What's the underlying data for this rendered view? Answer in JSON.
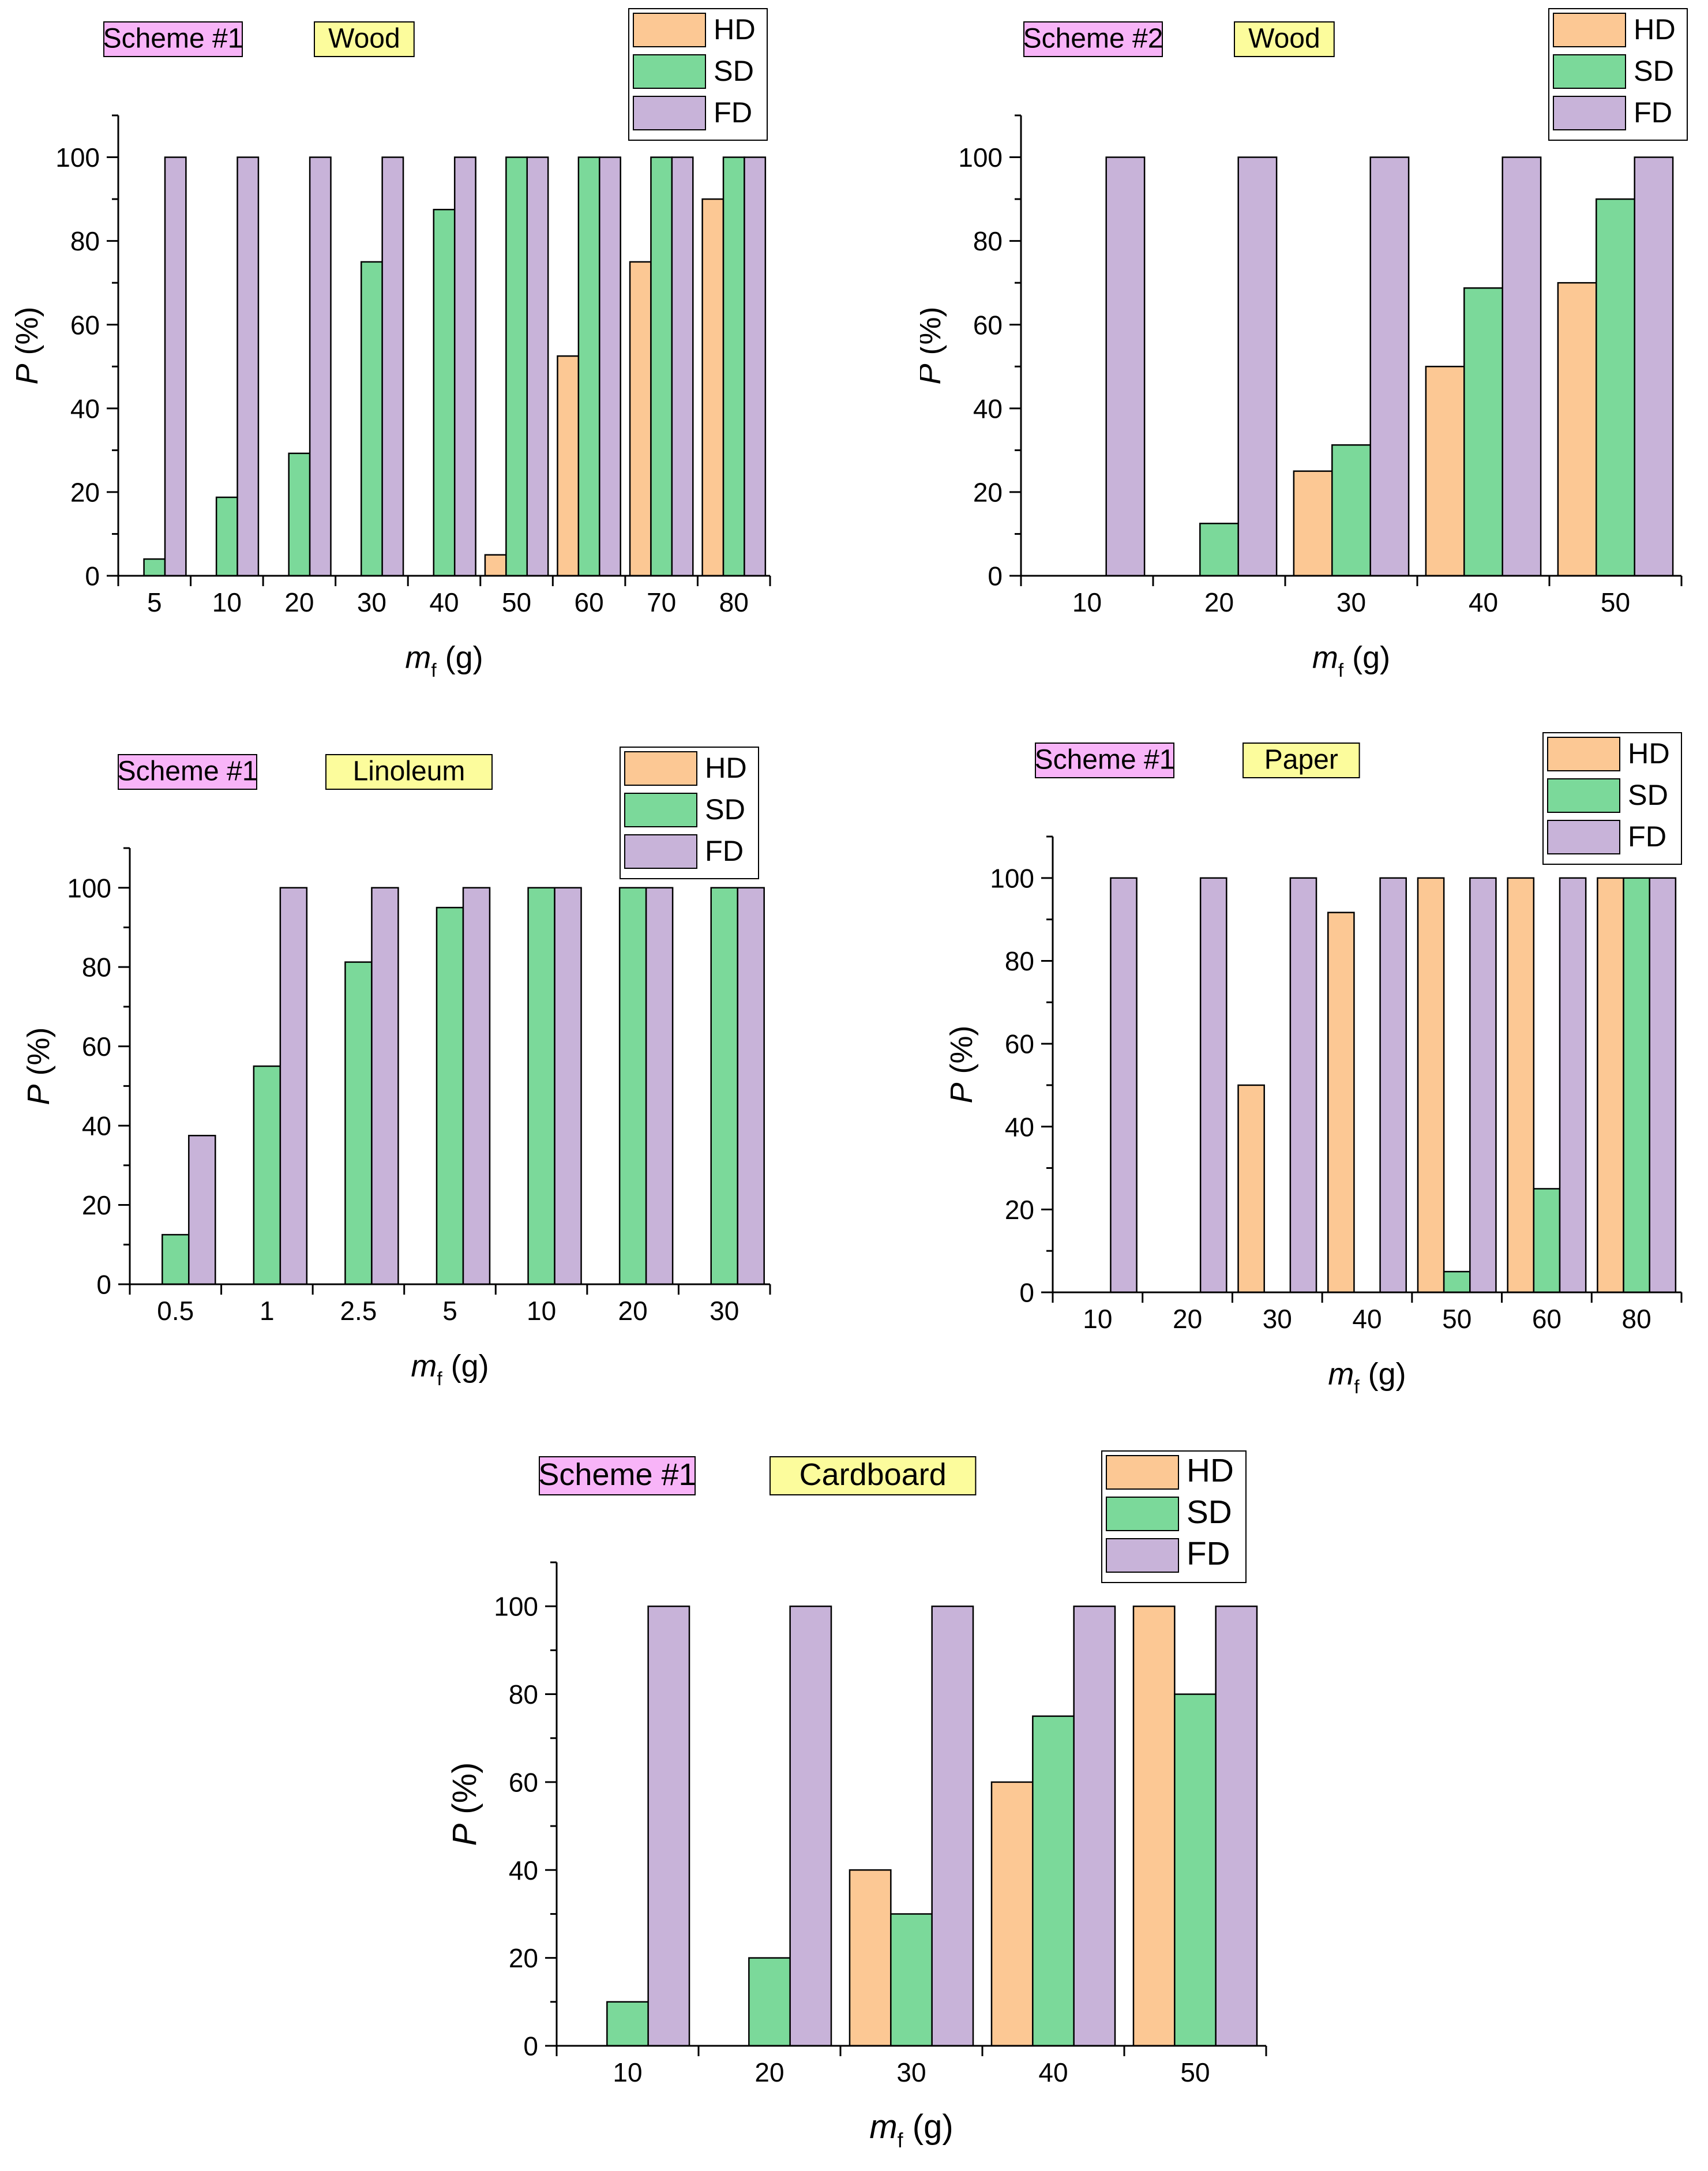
{
  "legend_labels": [
    "HD",
    "SD",
    "FD"
  ],
  "colors": {
    "HD": "#fcc894",
    "SD": "#7bd99a",
    "FD": "#c8b3d9",
    "scheme_tag": "#f8b4f8",
    "material_tag": "#fcfc9c"
  },
  "chart_data": [
    {
      "type": "bar",
      "scheme": "Scheme #1",
      "material": "Wood",
      "categories": [
        "5",
        "10",
        "20",
        "30",
        "40",
        "50",
        "60",
        "70",
        "80"
      ],
      "series": [
        {
          "name": "HD",
          "values": [
            0,
            0,
            0,
            0,
            0,
            5,
            52.5,
            75,
            90
          ]
        },
        {
          "name": "SD",
          "values": [
            4,
            18.75,
            29.25,
            75,
            87.5,
            100,
            100,
            100,
            100
          ]
        },
        {
          "name": "FD",
          "values": [
            100,
            100,
            100,
            100,
            100,
            100,
            100,
            100,
            100
          ]
        }
      ],
      "ylim": [
        0,
        110
      ],
      "yticks": [
        "0",
        "20",
        "40",
        "60",
        "80",
        "100"
      ],
      "xlabel_main": "m",
      "xlabel_sub": "f",
      "xlabel_unit": " (g)",
      "ylabel_main": "P",
      "ylabel_unit": " (%)",
      "legend_position": "top-right",
      "grid": false
    },
    {
      "type": "bar",
      "scheme": "Scheme #2",
      "material": "Wood",
      "categories": [
        "10",
        "20",
        "30",
        "40",
        "50"
      ],
      "series": [
        {
          "name": "HD",
          "values": [
            0,
            0,
            25,
            50,
            70
          ]
        },
        {
          "name": "SD",
          "values": [
            0,
            12.5,
            31.25,
            68.75,
            90
          ]
        },
        {
          "name": "FD",
          "values": [
            100,
            100,
            100,
            100,
            100
          ]
        }
      ],
      "ylim": [
        0,
        110
      ],
      "yticks": [
        "0",
        "20",
        "40",
        "60",
        "80",
        "100"
      ],
      "xlabel_main": "m",
      "xlabel_sub": "f",
      "xlabel_unit": " (g)",
      "ylabel_main": "P",
      "ylabel_unit": " (%)",
      "legend_position": "top-right",
      "grid": false
    },
    {
      "type": "bar",
      "scheme": "Scheme #1",
      "material": "Linoleum",
      "categories": [
        "0.5",
        "1",
        "2.5",
        "5",
        "10",
        "20",
        "30"
      ],
      "series": [
        {
          "name": "HD",
          "values": [
            0,
            0,
            0,
            0,
            0,
            0,
            0
          ]
        },
        {
          "name": "SD",
          "values": [
            12.5,
            55,
            81.25,
            95,
            100,
            100,
            100
          ]
        },
        {
          "name": "FD",
          "values": [
            37.5,
            100,
            100,
            100,
            100,
            100,
            100
          ]
        }
      ],
      "ylim": [
        0,
        110
      ],
      "yticks": [
        "0",
        "20",
        "40",
        "60",
        "80",
        "100"
      ],
      "xlabel_main": "m",
      "xlabel_sub": "f",
      "xlabel_unit": " (g)",
      "ylabel_main": "P",
      "ylabel_unit": " (%)",
      "legend_position": "top-right",
      "grid": false
    },
    {
      "type": "bar",
      "scheme": "Scheme #1",
      "material": "Paper",
      "categories": [
        "10",
        "20",
        "30",
        "40",
        "50",
        "60",
        "80"
      ],
      "series": [
        {
          "name": "HD",
          "values": [
            0,
            0,
            50,
            91.67,
            100,
            100,
            100
          ]
        },
        {
          "name": "SD",
          "values": [
            0,
            0,
            0,
            0,
            5,
            25,
            100
          ]
        },
        {
          "name": "FD",
          "values": [
            100,
            100,
            100,
            100,
            100,
            100,
            100
          ]
        }
      ],
      "ylim": [
        0,
        110
      ],
      "yticks": [
        "0",
        "20",
        "40",
        "60",
        "80",
        "100"
      ],
      "xlabel_main": "m",
      "xlabel_sub": "f",
      "xlabel_unit": " (g)",
      "ylabel_main": "P",
      "ylabel_unit": " (%)",
      "legend_position": "top-right",
      "grid": false
    },
    {
      "type": "bar",
      "scheme": "Scheme #1",
      "material": "Cardboard",
      "categories": [
        "10",
        "20",
        "30",
        "40",
        "50"
      ],
      "series": [
        {
          "name": "HD",
          "values": [
            0,
            0,
            40,
            60,
            100
          ]
        },
        {
          "name": "SD",
          "values": [
            10,
            20,
            30,
            75,
            80
          ]
        },
        {
          "name": "FD",
          "values": [
            100,
            100,
            100,
            100,
            100
          ]
        }
      ],
      "ylim": [
        0,
        110
      ],
      "yticks": [
        "0",
        "20",
        "40",
        "60",
        "80",
        "100"
      ],
      "xlabel_main": "m",
      "xlabel_sub": "f",
      "xlabel_unit": " (g)",
      "ylabel_main": "P",
      "ylabel_unit": " (%)",
      "legend_position": "top-right",
      "grid": false
    }
  ]
}
